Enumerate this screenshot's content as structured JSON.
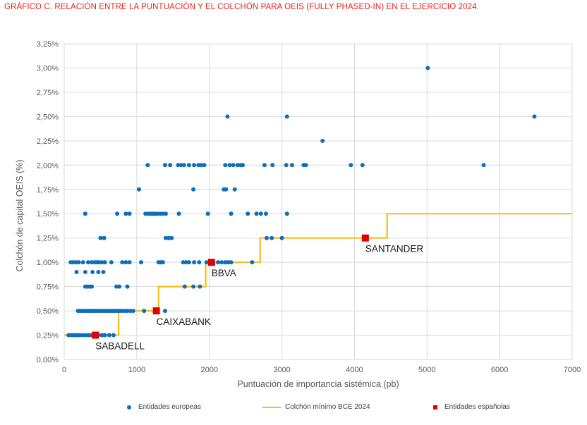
{
  "title": "GRÁFICO C. RELACIÓN ENTRE LA PUNTUACIÓN Y EL COLCHÓN PARA OEIS (FULLY PHASED-IN) EN EL EJERCICIO 2024.",
  "colors": {
    "title": "#e8231c",
    "european": "#0f6eb8",
    "line": "#f5bd1f",
    "spanish": "#e00000",
    "grid": "#d9d9d9"
  },
  "legend": {
    "european": "Entidades europeas",
    "line": "Colchón mínimo BCE 2024",
    "spanish": "Entidades españolas"
  },
  "chart_data": {
    "type": "scatter",
    "xlabel": "Puntuación de importancia sistémica (pb)",
    "ylabel": "Colchón de capital OEIS (%)",
    "xlim": [
      0,
      7000
    ],
    "ylim": [
      0,
      3.25
    ],
    "x_ticks": [
      0,
      1000,
      2000,
      3000,
      4000,
      5000,
      6000,
      7000
    ],
    "x_tick_labels": [
      "0",
      "1000",
      "2000",
      "3000",
      "4000",
      "5000",
      "6000",
      "7000"
    ],
    "y_ticks": [
      0,
      0.25,
      0.5,
      0.75,
      1.0,
      1.25,
      1.5,
      1.75,
      2.0,
      2.25,
      2.5,
      2.75,
      3.0,
      3.25
    ],
    "y_tick_labels": [
      "0,00%",
      "0,25%",
      "0,50%",
      "0,75%",
      "1,00%",
      "1,25%",
      "1,50%",
      "1,75%",
      "2,00%",
      "2,25%",
      "2,50%",
      "2,75%",
      "3,00%",
      "3,25%"
    ],
    "grid": true,
    "legend_position": "bottom",
    "series": [
      {
        "name": "Entidades europeas",
        "kind": "scatter",
        "points": [
          [
            60,
            0.25
          ],
          [
            100,
            0.25
          ],
          [
            130,
            0.25
          ],
          [
            160,
            0.25
          ],
          [
            190,
            0.25
          ],
          [
            220,
            0.25
          ],
          [
            260,
            0.25
          ],
          [
            300,
            0.25
          ],
          [
            340,
            0.25
          ],
          [
            380,
            0.25
          ],
          [
            420,
            0.25
          ],
          [
            470,
            0.25
          ],
          [
            520,
            0.25
          ],
          [
            560,
            0.25
          ],
          [
            620,
            0.25
          ],
          [
            680,
            0.25
          ],
          [
            190,
            0.5
          ],
          [
            220,
            0.5
          ],
          [
            250,
            0.5
          ],
          [
            280,
            0.5
          ],
          [
            310,
            0.5
          ],
          [
            340,
            0.5
          ],
          [
            370,
            0.5
          ],
          [
            400,
            0.5
          ],
          [
            430,
            0.5
          ],
          [
            460,
            0.5
          ],
          [
            490,
            0.5
          ],
          [
            520,
            0.5
          ],
          [
            550,
            0.5
          ],
          [
            580,
            0.5
          ],
          [
            610,
            0.5
          ],
          [
            640,
            0.5
          ],
          [
            670,
            0.5
          ],
          [
            700,
            0.5
          ],
          [
            730,
            0.5
          ],
          [
            760,
            0.5
          ],
          [
            790,
            0.5
          ],
          [
            830,
            0.5
          ],
          [
            870,
            0.5
          ],
          [
            910,
            0.5
          ],
          [
            950,
            0.5
          ],
          [
            1100,
            0.5
          ],
          [
            1390,
            0.5
          ],
          [
            290,
            0.75
          ],
          [
            320,
            0.75
          ],
          [
            350,
            0.75
          ],
          [
            380,
            0.75
          ],
          [
            720,
            0.75
          ],
          [
            760,
            0.75
          ],
          [
            870,
            0.75
          ],
          [
            1660,
            0.75
          ],
          [
            1780,
            0.75
          ],
          [
            1870,
            0.75
          ],
          [
            170,
            0.9
          ],
          [
            290,
            0.9
          ],
          [
            390,
            0.9
          ],
          [
            470,
            0.9
          ],
          [
            540,
            0.9
          ],
          [
            90,
            1.0
          ],
          [
            120,
            1.0
          ],
          [
            160,
            1.0
          ],
          [
            200,
            1.0
          ],
          [
            260,
            1.0
          ],
          [
            330,
            1.0
          ],
          [
            380,
            1.0
          ],
          [
            420,
            1.0
          ],
          [
            450,
            1.0
          ],
          [
            480,
            1.0
          ],
          [
            520,
            1.0
          ],
          [
            560,
            1.0
          ],
          [
            650,
            1.0
          ],
          [
            800,
            1.0
          ],
          [
            850,
            1.0
          ],
          [
            900,
            1.0
          ],
          [
            1060,
            1.0
          ],
          [
            1300,
            1.0
          ],
          [
            1330,
            1.0
          ],
          [
            1360,
            1.0
          ],
          [
            1640,
            1.0
          ],
          [
            1680,
            1.0
          ],
          [
            1720,
            1.0
          ],
          [
            1790,
            1.0
          ],
          [
            1860,
            1.0
          ],
          [
            1960,
            1.0
          ],
          [
            2050,
            1.0
          ],
          [
            2120,
            1.0
          ],
          [
            2170,
            1.0
          ],
          [
            2220,
            1.0
          ],
          [
            2260,
            1.0
          ],
          [
            2300,
            1.0
          ],
          [
            2590,
            1.0
          ],
          [
            500,
            1.25
          ],
          [
            550,
            1.25
          ],
          [
            1400,
            1.25
          ],
          [
            1440,
            1.25
          ],
          [
            1480,
            1.25
          ],
          [
            2790,
            1.25
          ],
          [
            2860,
            1.25
          ],
          [
            3000,
            1.25
          ],
          [
            290,
            1.5
          ],
          [
            730,
            1.5
          ],
          [
            850,
            1.5
          ],
          [
            900,
            1.5
          ],
          [
            1120,
            1.5
          ],
          [
            1160,
            1.5
          ],
          [
            1190,
            1.5
          ],
          [
            1220,
            1.5
          ],
          [
            1250,
            1.5
          ],
          [
            1280,
            1.5
          ],
          [
            1320,
            1.5
          ],
          [
            1360,
            1.5
          ],
          [
            1400,
            1.5
          ],
          [
            1580,
            1.5
          ],
          [
            1980,
            1.5
          ],
          [
            2300,
            1.5
          ],
          [
            2530,
            1.5
          ],
          [
            2650,
            1.5
          ],
          [
            2710,
            1.5
          ],
          [
            2780,
            1.5
          ],
          [
            3070,
            1.5
          ],
          [
            1030,
            1.75
          ],
          [
            1780,
            1.75
          ],
          [
            2200,
            1.75
          ],
          [
            2230,
            1.75
          ],
          [
            2350,
            1.75
          ],
          [
            1150,
            2.0
          ],
          [
            1390,
            2.0
          ],
          [
            1460,
            2.0
          ],
          [
            1570,
            2.0
          ],
          [
            1610,
            2.0
          ],
          [
            1650,
            2.0
          ],
          [
            1720,
            2.0
          ],
          [
            1790,
            2.0
          ],
          [
            1850,
            2.0
          ],
          [
            1890,
            2.0
          ],
          [
            1930,
            2.0
          ],
          [
            2220,
            2.0
          ],
          [
            2280,
            2.0
          ],
          [
            2330,
            2.0
          ],
          [
            2390,
            2.0
          ],
          [
            2430,
            2.0
          ],
          [
            2460,
            2.0
          ],
          [
            2760,
            2.0
          ],
          [
            2870,
            2.0
          ],
          [
            3060,
            2.0
          ],
          [
            3140,
            2.0
          ],
          [
            3300,
            2.0
          ],
          [
            3330,
            2.0
          ],
          [
            3950,
            2.0
          ],
          [
            4110,
            2.0
          ],
          [
            5780,
            2.0
          ],
          [
            3560,
            2.25
          ],
          [
            2250,
            2.5
          ],
          [
            3070,
            2.5
          ],
          [
            6480,
            2.5
          ],
          [
            5010,
            3.0
          ]
        ]
      },
      {
        "name": "Colchón mínimo BCE 2024",
        "kind": "step-line",
        "points": [
          [
            0,
            0.25
          ],
          [
            750,
            0.25
          ],
          [
            750,
            0.5
          ],
          [
            1300,
            0.5
          ],
          [
            1300,
            0.75
          ],
          [
            1950,
            0.75
          ],
          [
            1950,
            1.0
          ],
          [
            2700,
            1.0
          ],
          [
            2700,
            1.25
          ],
          [
            4450,
            1.25
          ],
          [
            4450,
            1.5
          ],
          [
            7000,
            1.5
          ]
        ]
      },
      {
        "name": "Entidades españolas",
        "kind": "scatter",
        "points": [
          {
            "x": 430,
            "y": 0.25,
            "label": "SABADELL"
          },
          {
            "x": 1270,
            "y": 0.5,
            "label": "CAIXABANK"
          },
          {
            "x": 2030,
            "y": 1.0,
            "label": "BBVA"
          },
          {
            "x": 4150,
            "y": 1.25,
            "label": "SANTANDER"
          }
        ]
      }
    ]
  }
}
